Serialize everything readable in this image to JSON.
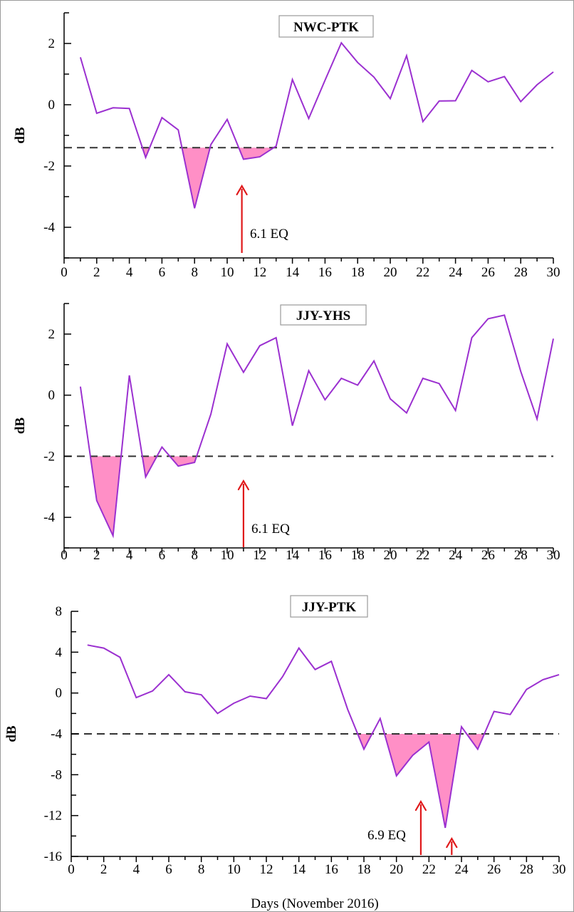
{
  "chart_data": [
    {
      "type": "line",
      "title": "NWC-PTK",
      "ylabel": "dB",
      "xlabel": "",
      "xlim": [
        0,
        30
      ],
      "ylim": [
        -5,
        3
      ],
      "xticks": [
        0,
        2,
        4,
        6,
        8,
        10,
        12,
        14,
        16,
        18,
        20,
        22,
        24,
        26,
        28,
        30
      ],
      "yticks": [
        2,
        0,
        -2,
        -4
      ],
      "threshold": -1.4,
      "series": [
        {
          "x": [
            1,
            2,
            3,
            4,
            5,
            6,
            7,
            8,
            9,
            10,
            11,
            12,
            13,
            14,
            15,
            16,
            17,
            18,
            19,
            20,
            21,
            22,
            23,
            24,
            25,
            26,
            27,
            28,
            29,
            30
          ],
          "y": [
            1.55,
            -0.28,
            -0.1,
            -0.12,
            -1.72,
            -0.42,
            -0.82,
            -3.38,
            -1.3,
            -0.48,
            -1.78,
            -1.7,
            -1.35,
            0.82,
            -0.45,
            0.8,
            2.02,
            1.38,
            0.9,
            0.2,
            1.6,
            -0.55,
            0.12,
            0.13,
            1.12,
            0.75,
            0.92,
            0.1,
            0.65,
            1.07
          ]
        }
      ],
      "annotation": {
        "text": "6.1 EQ",
        "x": 10.9
      },
      "colors": {
        "line": "#9b30d0",
        "fill": "#ff8fc6",
        "threshold": "#333333",
        "arrow": "#e0181a"
      }
    },
    {
      "type": "line",
      "title": "JJY-YHS",
      "ylabel": "dB",
      "xlabel": "",
      "xlim": [
        0,
        30
      ],
      "ylim": [
        -5,
        3
      ],
      "xticks": [
        0,
        2,
        4,
        6,
        8,
        10,
        12,
        14,
        16,
        18,
        20,
        22,
        24,
        26,
        28,
        30
      ],
      "yticks": [
        2,
        0,
        -2,
        -4
      ],
      "threshold": -2,
      "series": [
        {
          "x": [
            1,
            2,
            3,
            4,
            5,
            6,
            7,
            8,
            9,
            10,
            11,
            12,
            13,
            14,
            15,
            16,
            17,
            18,
            19,
            20,
            21,
            22,
            23,
            24,
            25,
            26,
            27,
            28,
            29,
            30
          ],
          "y": [
            0.28,
            -3.45,
            -4.6,
            0.65,
            -2.68,
            -1.7,
            -2.32,
            -2.2,
            -0.62,
            1.68,
            0.75,
            1.62,
            1.88,
            -1.0,
            0.8,
            -0.15,
            0.55,
            0.33,
            1.12,
            -0.12,
            -0.58,
            0.55,
            0.38,
            -0.5,
            1.88,
            2.5,
            2.62,
            0.78,
            -0.78,
            1.85
          ]
        }
      ],
      "annotation": {
        "text": "6.1 EQ",
        "x": 11
      },
      "colors": {
        "line": "#9b30d0",
        "fill": "#ff8fc6",
        "threshold": "#333333",
        "arrow": "#e0181a"
      }
    },
    {
      "type": "line",
      "title": "JJY-PTK",
      "ylabel": "dB",
      "xlabel": "Days (November 2016)",
      "xlim": [
        0,
        30
      ],
      "ylim": [
        -16,
        8
      ],
      "xticks": [
        0,
        2,
        4,
        6,
        8,
        10,
        12,
        14,
        16,
        18,
        20,
        22,
        24,
        26,
        28,
        30
      ],
      "yticks": [
        8,
        4,
        0,
        -4,
        -8,
        -12,
        -16
      ],
      "threshold": -4,
      "series": [
        {
          "x": [
            1,
            2,
            3,
            4,
            5,
            6,
            7,
            8,
            9,
            10,
            11,
            12,
            13,
            14,
            15,
            16,
            17,
            18,
            19,
            20,
            21,
            22,
            23,
            24,
            25,
            26,
            27,
            28,
            29,
            30
          ],
          "y": [
            4.7,
            4.4,
            3.5,
            -0.45,
            0.2,
            1.8,
            0.12,
            -0.18,
            -2.0,
            -1.0,
            -0.3,
            -0.55,
            1.6,
            4.4,
            2.3,
            3.1,
            -1.6,
            -5.5,
            -2.5,
            -8.1,
            -6.1,
            -4.8,
            -13.2,
            -3.3,
            -5.5,
            -1.8,
            -2.1,
            0.35,
            1.3,
            1.8
          ]
        }
      ],
      "annotation": {
        "text": "6.9 EQ",
        "x": 21.5,
        "second_arrow_x": 23.4
      },
      "colors": {
        "line": "#9b30d0",
        "fill": "#ff8fc6",
        "threshold": "#333333",
        "arrow": "#e0181a"
      }
    }
  ]
}
